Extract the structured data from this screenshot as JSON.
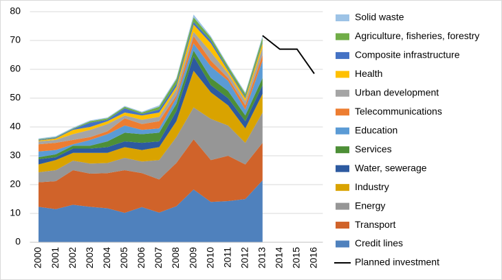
{
  "chart_data": {
    "type": "stacked_area",
    "categories": [
      "2000",
      "2001",
      "2002",
      "2003",
      "2004",
      "2005",
      "2006",
      "2007",
      "2008",
      "2009",
      "2010",
      "2011",
      "2012",
      "2013",
      "2014",
      "2015",
      "2016"
    ],
    "ylim": [
      0,
      80
    ],
    "yticks": [
      0,
      10,
      20,
      30,
      40,
      50,
      60,
      70,
      80
    ],
    "grid": true,
    "legend": "right",
    "series": [
      {
        "name": "Credit lines",
        "color": "#4f81bd",
        "values": [
          12.3,
          11.5,
          13,
          12.3,
          11.8,
          10.2,
          12.2,
          10.3,
          12.5,
          18.3,
          14,
          14.3,
          15,
          21.5,
          null,
          null,
          null
        ]
      },
      {
        "name": "Transport",
        "color": "#d0632a",
        "values": [
          8.5,
          9.7,
          12,
          11.5,
          12.2,
          14.8,
          11.8,
          11.5,
          15,
          17.4,
          14.5,
          15.7,
          12,
          13,
          null,
          null,
          null
        ]
      },
      {
        "name": "Energy",
        "color": "#969696",
        "values": [
          3.5,
          3.8,
          3.3,
          3.5,
          3.5,
          4.3,
          4,
          6.7,
          9,
          11.1,
          14.3,
          10.5,
          7.5,
          10.5,
          null,
          null,
          null
        ]
      },
      {
        "name": "Industry",
        "color": "#d9a300",
        "values": [
          2.7,
          3.5,
          2.7,
          3.7,
          3.5,
          3.7,
          4,
          4.5,
          5.5,
          12.7,
          9.2,
          7,
          5,
          6.5,
          null,
          null,
          null
        ]
      },
      {
        "name": "Water, sewerage",
        "color": "#2d5aa0",
        "values": [
          1.8,
          1,
          1.5,
          1.5,
          2,
          2,
          2.5,
          2,
          3.5,
          5,
          2.5,
          2.5,
          2.5,
          3,
          null,
          null,
          null
        ]
      },
      {
        "name": "Services",
        "color": "#4d8f37",
        "values": [
          0.7,
          1,
          1,
          1,
          2,
          3,
          3,
          3,
          2.5,
          2,
          2.5,
          2.5,
          2,
          2.5,
          null,
          null,
          null
        ]
      },
      {
        "name": "Education",
        "color": "#5b9bd5",
        "values": [
          2,
          1.5,
          0.5,
          2,
          2.5,
          2.5,
          1.5,
          1.5,
          2,
          2.5,
          4,
          3.5,
          2,
          6,
          null,
          null,
          null
        ]
      },
      {
        "name": "Telecommunications",
        "color": "#ed7d31",
        "values": [
          2.5,
          2.5,
          1.5,
          1,
          1,
          2.5,
          2,
          2.5,
          1,
          2.5,
          2,
          1,
          1.5,
          2,
          null,
          null,
          null
        ]
      },
      {
        "name": "Urban development",
        "color": "#a5a5a5",
        "values": [
          1,
          1,
          2,
          2.5,
          2.5,
          1,
          1.5,
          1.5,
          2,
          1.5,
          3,
          1.5,
          1.5,
          2.5,
          null,
          null,
          null
        ]
      },
      {
        "name": "Health",
        "color": "#ffc000",
        "values": [
          0.3,
          0.5,
          1.5,
          1,
          1,
          1,
          1.5,
          1.5,
          1,
          2.5,
          3,
          1,
          1,
          1.5,
          null,
          null,
          null
        ]
      },
      {
        "name": "Composite infrastructure",
        "color": "#4472c4",
        "values": [
          0.2,
          0.3,
          0.3,
          1.5,
          0.5,
          1.5,
          0.5,
          1,
          1,
          1,
          1,
          0.5,
          0.5,
          0.5,
          null,
          null,
          null
        ]
      },
      {
        "name": "Agriculture, fisheries, forestry",
        "color": "#70ad47",
        "values": [
          0.2,
          0.2,
          0.2,
          0.5,
          0.5,
          0.5,
          0.5,
          1,
          1.5,
          1.5,
          1,
          1,
          1,
          1.5,
          null,
          null,
          null
        ]
      },
      {
        "name": "Solid waste",
        "color": "#9dc3e6",
        "values": [
          0.3,
          0.3,
          0.3,
          0.3,
          0.3,
          0.3,
          0.3,
          0.5,
          0.5,
          1,
          0.5,
          0.5,
          0.5,
          0.7,
          null,
          null,
          null
        ]
      },
      {
        "name": "Planned investment",
        "color": "#000000",
        "type": "line",
        "values": [
          null,
          null,
          null,
          null,
          null,
          null,
          null,
          null,
          null,
          null,
          null,
          null,
          null,
          71.7,
          67,
          67,
          58.5
        ]
      }
    ]
  }
}
